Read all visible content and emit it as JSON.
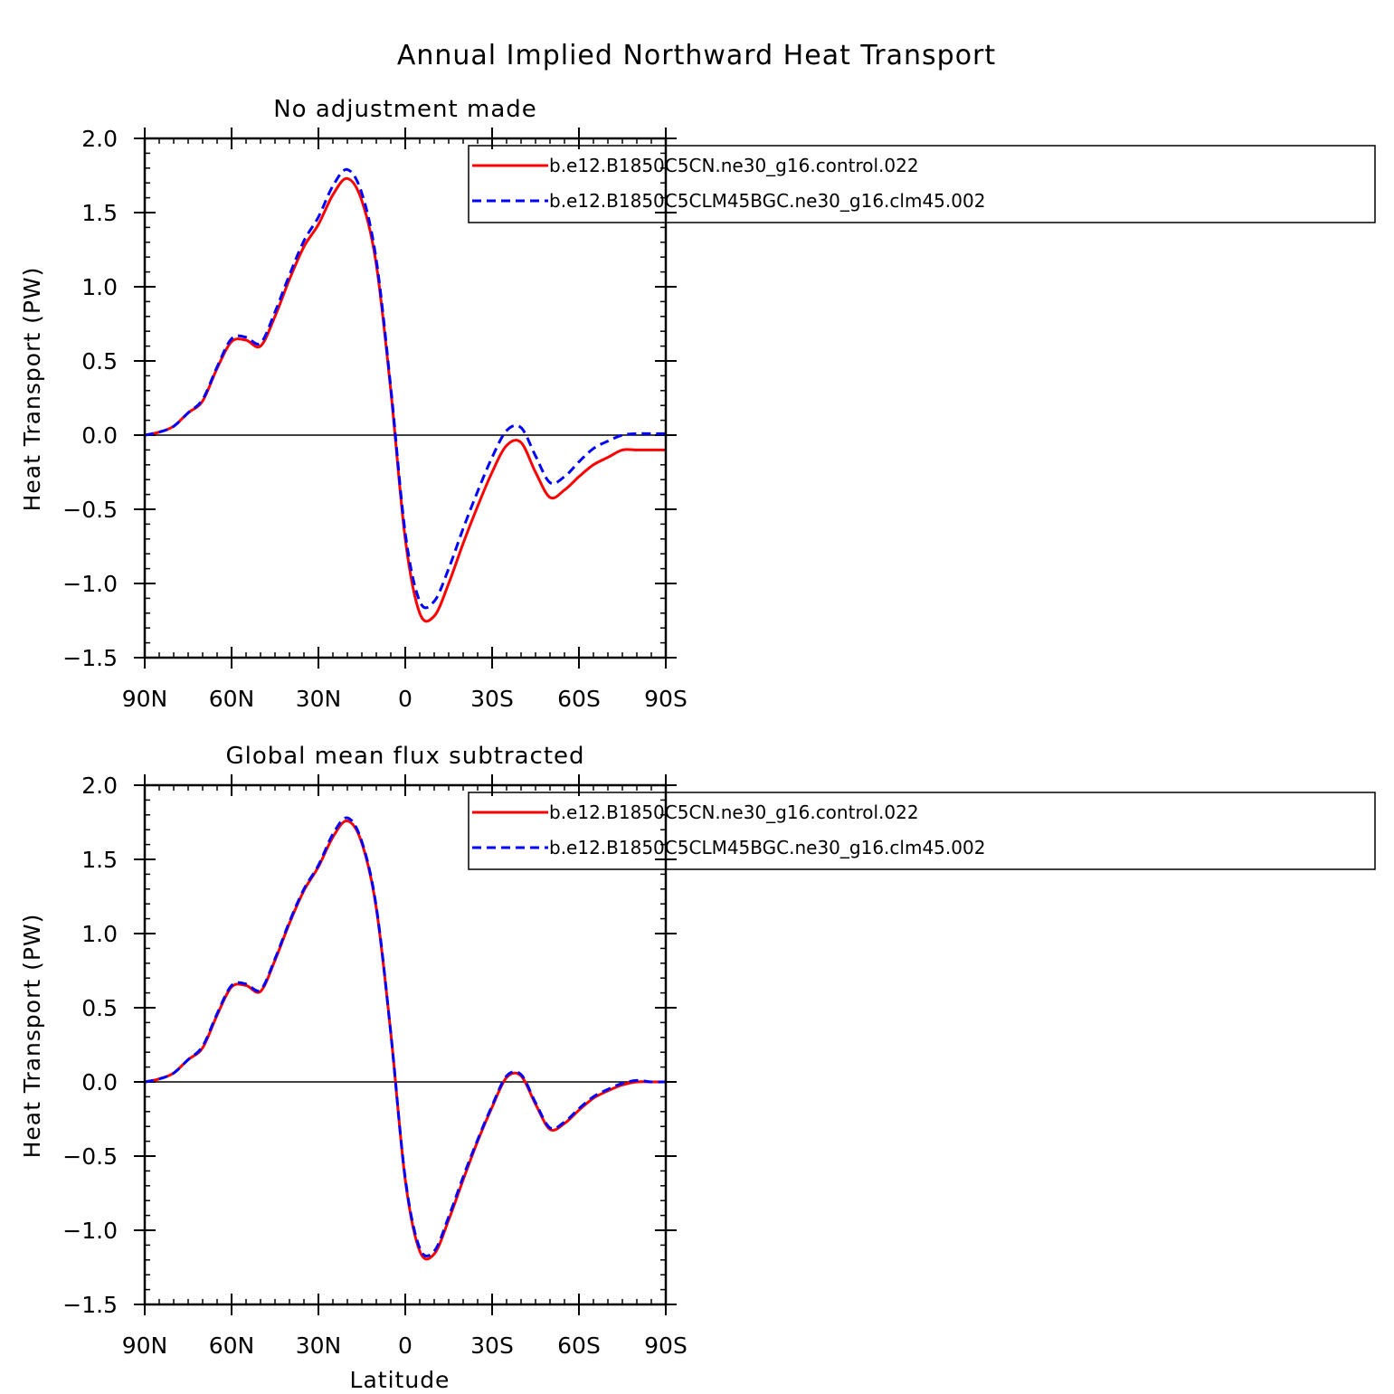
{
  "title": "Annual Implied Northward Heat Transport",
  "chart_data": [
    {
      "type": "line",
      "title": "No adjustment made",
      "xlabel": "",
      "ylabel": "Heat Transport (PW)",
      "xlim": [
        90,
        -90
      ],
      "ylim": [
        -1.5,
        2.0
      ],
      "x_ticks": [
        90,
        60,
        30,
        0,
        -30,
        -60,
        -90
      ],
      "x_tick_labels": [
        "90N",
        "60N",
        "30N",
        "0",
        "30S",
        "60S",
        "90S"
      ],
      "y_ticks": [
        2.0,
        1.5,
        1.0,
        0.5,
        0.0,
        -0.5,
        -1.0,
        -1.5
      ],
      "y_tick_labels": [
        "2.0",
        "1.5",
        "1.0",
        "0.5",
        "0.0",
        "−0.5",
        "−1.0",
        "−1.5"
      ],
      "zero_line": true,
      "legend_position": "top-right",
      "x": [
        90,
        85,
        80,
        75,
        70,
        65,
        60,
        55,
        50,
        45,
        40,
        35,
        30,
        25,
        20,
        15,
        10,
        5,
        0,
        -5,
        -10,
        -15,
        -20,
        -25,
        -30,
        -35,
        -40,
        -45,
        -50,
        -55,
        -60,
        -65,
        -70,
        -75,
        -80,
        -85,
        -90
      ],
      "series": [
        {
          "name": "b.e12.B1850C5CN.ne30_g16.control.022",
          "color": "#ff0000",
          "dash": "solid",
          "values": [
            0.0,
            0.02,
            0.06,
            0.15,
            0.23,
            0.45,
            0.63,
            0.64,
            0.6,
            0.8,
            1.05,
            1.27,
            1.42,
            1.62,
            1.73,
            1.58,
            1.15,
            0.3,
            -0.7,
            -1.2,
            -1.22,
            -1.0,
            -0.73,
            -0.48,
            -0.25,
            -0.07,
            -0.05,
            -0.25,
            -0.42,
            -0.37,
            -0.28,
            -0.2,
            -0.15,
            -0.1,
            -0.1,
            -0.1,
            -0.1
          ]
        },
        {
          "name": "b.e12.B1850C5CLM45BGC.ne30_g16.clm45.002",
          "color": "#0000ff",
          "dash": "dashed",
          "values": [
            0.0,
            0.02,
            0.06,
            0.15,
            0.24,
            0.46,
            0.65,
            0.66,
            0.62,
            0.83,
            1.08,
            1.31,
            1.47,
            1.68,
            1.79,
            1.63,
            1.18,
            0.32,
            -0.66,
            -1.12,
            -1.12,
            -0.9,
            -0.63,
            -0.38,
            -0.15,
            0.03,
            0.05,
            -0.14,
            -0.32,
            -0.28,
            -0.18,
            -0.09,
            -0.04,
            0.0,
            0.01,
            0.01,
            0.01
          ]
        }
      ]
    },
    {
      "type": "line",
      "title": "Global mean flux subtracted",
      "xlabel": "Latitude",
      "ylabel": "Heat Transport (PW)",
      "xlim": [
        90,
        -90
      ],
      "ylim": [
        -1.5,
        2.0
      ],
      "x_ticks": [
        90,
        60,
        30,
        0,
        -30,
        -60,
        -90
      ],
      "x_tick_labels": [
        "90N",
        "60N",
        "30N",
        "0",
        "30S",
        "60S",
        "90S"
      ],
      "y_ticks": [
        2.0,
        1.5,
        1.0,
        0.5,
        0.0,
        -0.5,
        -1.0,
        -1.5
      ],
      "y_tick_labels": [
        "2.0",
        "1.5",
        "1.0",
        "0.5",
        "0.0",
        "−0.5",
        "−1.0",
        "−1.5"
      ],
      "zero_line": true,
      "legend_position": "top-right",
      "x": [
        90,
        85,
        80,
        75,
        70,
        65,
        60,
        55,
        50,
        45,
        40,
        35,
        30,
        25,
        20,
        15,
        10,
        5,
        0,
        -5,
        -10,
        -15,
        -20,
        -25,
        -30,
        -35,
        -40,
        -45,
        -50,
        -55,
        -60,
        -65,
        -70,
        -75,
        -80,
        -85,
        -90
      ],
      "series": [
        {
          "name": "b.e12.B1850C5CN.ne30_g16.control.022",
          "color": "#ff0000",
          "dash": "solid",
          "values": [
            0.0,
            0.02,
            0.06,
            0.15,
            0.23,
            0.45,
            0.64,
            0.65,
            0.61,
            0.82,
            1.07,
            1.29,
            1.45,
            1.65,
            1.76,
            1.61,
            1.17,
            0.33,
            -0.66,
            -1.14,
            -1.16,
            -0.93,
            -0.66,
            -0.4,
            -0.17,
            0.03,
            0.04,
            -0.15,
            -0.32,
            -0.28,
            -0.19,
            -0.11,
            -0.06,
            -0.02,
            0.0,
            0.0,
            0.0
          ]
        },
        {
          "name": "b.e12.B1850C5CLM45BGC.ne30_g16.clm45.002",
          "color": "#0000ff",
          "dash": "dashed",
          "values": [
            0.0,
            0.02,
            0.06,
            0.15,
            0.24,
            0.46,
            0.65,
            0.66,
            0.62,
            0.83,
            1.08,
            1.3,
            1.46,
            1.67,
            1.78,
            1.62,
            1.18,
            0.33,
            -0.65,
            -1.12,
            -1.14,
            -0.91,
            -0.64,
            -0.39,
            -0.16,
            0.04,
            0.05,
            -0.14,
            -0.31,
            -0.27,
            -0.18,
            -0.1,
            -0.05,
            -0.01,
            0.01,
            0.0,
            0.0
          ]
        }
      ]
    }
  ]
}
